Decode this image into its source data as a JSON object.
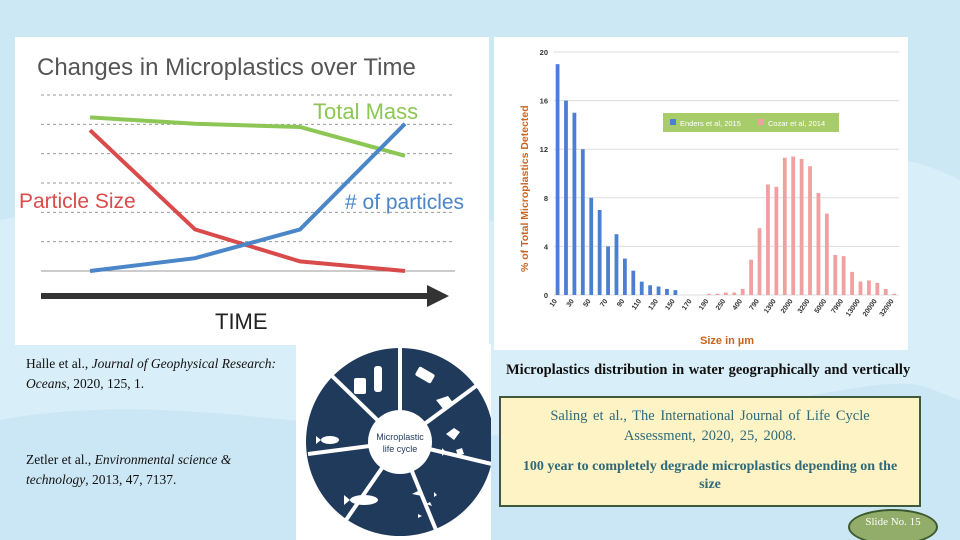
{
  "colors": {
    "background": "#d8eef8",
    "accent_text": "#2f6a7a",
    "box_fill": "#fdf3c4",
    "badge_fill": "#92ad6a"
  },
  "chart_data": [
    {
      "type": "line",
      "title": "Changes in Microplastics over Time",
      "xlabel": "TIME",
      "x": [
        0,
        1,
        2,
        3
      ],
      "series": [
        {
          "name": "Total Mass",
          "color": "#8cc654",
          "values": [
            4.8,
            4.6,
            4.5,
            3.6
          ]
        },
        {
          "name": "Particle Size",
          "color": "#d94b4b",
          "values": [
            4.4,
            1.3,
            0.3,
            0.0
          ]
        },
        {
          "name": "# of particles",
          "color": "#4a86c8",
          "values": [
            0.0,
            0.4,
            1.3,
            4.6
          ]
        }
      ],
      "ylim": [
        0,
        5.5
      ]
    },
    {
      "type": "bar",
      "ylabel": "% of Total Microplastics Detected",
      "xlabel": "Size in µm",
      "ylim": [
        0,
        20
      ],
      "yticks": [
        "0",
        "4",
        "8",
        "12",
        "16",
        "20"
      ],
      "tick_labels": [
        "10",
        "30",
        "50",
        "70",
        "90",
        "110",
        "130",
        "150",
        "170",
        "190",
        "250",
        "400",
        "790",
        "1300",
        "2000",
        "3200",
        "5000",
        "7900",
        "13000",
        "20000",
        "32000"
      ],
      "series": [
        {
          "name": "Enders et al, 2015",
          "color": "#4a7fd4",
          "values": [
            19,
            16,
            15,
            12,
            8,
            7,
            4,
            5,
            3,
            2,
            1.1,
            0.8,
            0.7,
            0.5,
            0.4,
            0,
            0,
            0,
            0,
            0,
            0,
            0,
            0,
            0,
            0,
            0,
            0,
            0,
            0,
            0,
            0,
            0,
            0,
            0,
            0,
            0,
            0,
            0,
            0,
            0,
            0
          ]
        },
        {
          "name": "Cozar et al, 2014",
          "color": "#f0a0a0",
          "values": [
            0,
            0,
            0,
            0,
            0,
            0,
            0,
            0,
            0,
            0,
            0,
            0,
            0,
            0,
            0,
            0,
            0,
            0,
            0.1,
            0.1,
            0.2,
            0.2,
            0.5,
            2.9,
            5.5,
            9.1,
            8.9,
            11.3,
            11.4,
            11.2,
            10.6,
            8.4,
            6.7,
            3.3,
            3.2,
            1.9,
            1.1,
            1.2,
            1.0,
            0.5,
            0.1
          ]
        }
      ]
    }
  ],
  "refs": {
    "halle_authors": "Halle et al.,",
    "halle_journal": "Journal of Geophysical Research: Oceans",
    "halle_details": ", 2020, 125, 1.",
    "zetler_authors": "Zetler et al.,",
    "zetler_journal": "Environmental science & technology",
    "zetler_details": ",  2013, 47, 7137."
  },
  "lifecycle": {
    "label_line1": "Microplastic",
    "label_line2": "life cycle"
  },
  "caption": "Microplastics distribution  in water geographically  and vertically",
  "info": {
    "ref": "Saling  et al., The International  Journal  of Life Cycle Assessment,   2020, 25, 2008.",
    "note": "100 year to completely degrade microplastics  depending on the size"
  },
  "slide_badge": "Slide No. 15"
}
